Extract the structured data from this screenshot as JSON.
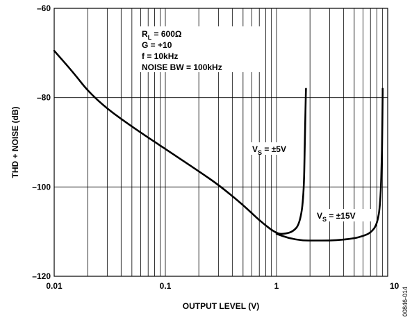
{
  "chart_data": {
    "type": "line",
    "x_scale": "log",
    "xlim": [
      0.01,
      10
    ],
    "ylim": [
      -120,
      -60
    ],
    "grid": true,
    "xlabel": "OUTPUT LEVEL (V)",
    "ylabel": "THD + NOISE (dB)",
    "x_ticks": [
      {
        "value": 0.01,
        "label": "0.01"
      },
      {
        "value": 0.1,
        "label": "0.1"
      },
      {
        "value": 1,
        "label": "1"
      },
      {
        "value": 10,
        "label": "10"
      }
    ],
    "y_ticks": [
      {
        "value": -60,
        "label": "–60"
      },
      {
        "value": -80,
        "label": "–80"
      },
      {
        "value": -100,
        "label": "–100"
      },
      {
        "value": -120,
        "label": "–120"
      }
    ],
    "conditions": {
      "rl": {
        "main": "R",
        "sub": "L",
        "rest": " = 600Ω"
      },
      "gain": "G = +10",
      "freq": "f = 10kHz",
      "bw": "NOISE BW = 100kHz"
    },
    "series": [
      {
        "label": {
          "main": "V",
          "sub": "S",
          "rest": " = ±5V"
        },
        "points": [
          [
            0.01,
            -69.5
          ],
          [
            0.015,
            -74.5
          ],
          [
            0.02,
            -78.5
          ],
          [
            0.03,
            -82.5
          ],
          [
            0.05,
            -86.5
          ],
          [
            0.1,
            -91.5
          ],
          [
            0.2,
            -96.5
          ],
          [
            0.3,
            -99.5
          ],
          [
            0.5,
            -104
          ],
          [
            0.7,
            -107.5
          ],
          [
            1.0,
            -110.5
          ],
          [
            1.2,
            -110.5
          ],
          [
            1.4,
            -110
          ],
          [
            1.6,
            -108.5
          ],
          [
            1.75,
            -103
          ],
          [
            1.8,
            -90
          ],
          [
            1.83,
            -80
          ],
          [
            1.84,
            -78
          ]
        ]
      },
      {
        "label": {
          "main": "V",
          "sub": "S",
          "rest": " = ±15V"
        },
        "points": [
          [
            1.0,
            -110.5
          ],
          [
            1.3,
            -111.5
          ],
          [
            1.7,
            -112
          ],
          [
            2.2,
            -112
          ],
          [
            3,
            -112
          ],
          [
            4,
            -111.8
          ],
          [
            5,
            -111.5
          ],
          [
            6,
            -111
          ],
          [
            7,
            -110.3
          ],
          [
            8,
            -108.5
          ],
          [
            8.6,
            -104
          ],
          [
            8.9,
            -92
          ],
          [
            9.0,
            -80
          ],
          [
            9.02,
            -78
          ]
        ]
      }
    ]
  },
  "figure_id": "00846-014"
}
